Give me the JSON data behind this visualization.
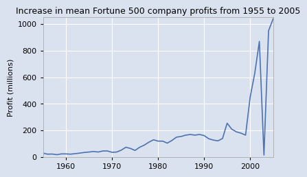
{
  "title": "Increase in mean Fortune 500 company profits from 1955 to 2005",
  "xlabel": "",
  "ylabel": "Profit (millions)",
  "line_color": "#4c72b0",
  "bg_color": "#dae2f0",
  "years": [
    1955,
    1956,
    1957,
    1958,
    1959,
    1960,
    1961,
    1962,
    1963,
    1964,
    1965,
    1966,
    1967,
    1968,
    1969,
    1970,
    1971,
    1972,
    1973,
    1974,
    1975,
    1976,
    1977,
    1978,
    1979,
    1980,
    1981,
    1982,
    1983,
    1984,
    1985,
    1986,
    1987,
    1988,
    1989,
    1990,
    1991,
    1992,
    1993,
    1994,
    1995,
    1996,
    1997,
    1998,
    1999,
    2000,
    2001,
    2002,
    2003,
    2004,
    2005
  ],
  "profits": [
    30,
    22,
    23,
    18,
    24,
    24,
    22,
    26,
    30,
    35,
    38,
    42,
    38,
    46,
    46,
    36,
    38,
    52,
    74,
    65,
    50,
    74,
    90,
    112,
    130,
    120,
    120,
    105,
    125,
    150,
    155,
    165,
    170,
    165,
    170,
    162,
    138,
    128,
    122,
    140,
    255,
    210,
    190,
    180,
    165,
    450,
    630,
    870,
    15,
    950,
    1040
  ],
  "ylim": [
    0,
    1050
  ],
  "xlim": [
    1955,
    2005
  ],
  "yticks": [
    0,
    200,
    400,
    600,
    800,
    1000
  ],
  "xticks": [
    1960,
    1970,
    1980,
    1990,
    2000
  ],
  "title_fontsize": 9,
  "label_fontsize": 8,
  "tick_fontsize": 8,
  "linewidth": 1.2
}
